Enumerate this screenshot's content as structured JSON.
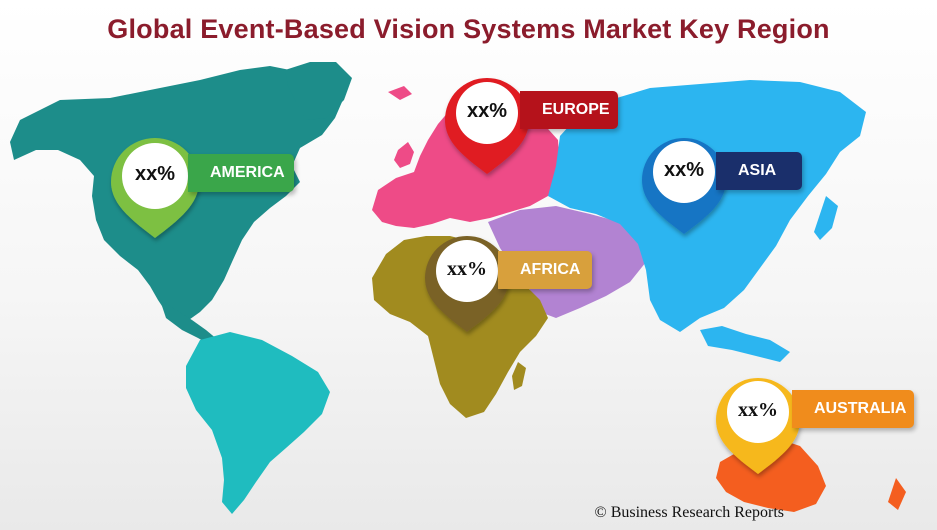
{
  "title": "Global Event-Based Vision Systems Market Key Region",
  "regions": [
    {
      "name": "AMERICA",
      "value": "xx%",
      "color": "#7dc043",
      "tag_color": "#3aa64a",
      "land_color": "#1d8d8a"
    },
    {
      "name": "EUROPE",
      "value": "xx%",
      "color": "#e01b24",
      "tag_color": "#b5121b",
      "land_color": "#ee4b87"
    },
    {
      "name": "ASIA",
      "value": "xx%",
      "color": "#1574c4",
      "tag_color": "#1a2f6b",
      "land_color": "#2cb5f0"
    },
    {
      "name": "AFRICA",
      "value": "xx%",
      "color": "#7a6225",
      "tag_color": "#d8a03c",
      "land_color": "#a18b1f"
    },
    {
      "name": "AUSTRALIA",
      "value": "xx%",
      "color": "#f6b81b",
      "tag_color": "#f08c1c",
      "land_color": "#f45e1f"
    }
  ],
  "south_america_color": "#1fbcbf",
  "middle_east_color": "#b283d2",
  "copyright": "© Business Research Reports"
}
